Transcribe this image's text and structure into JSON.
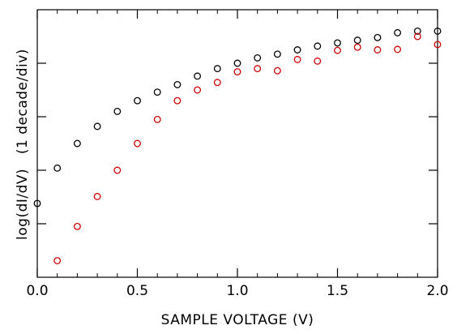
{
  "chart_data": {
    "type": "scatter",
    "title": "",
    "xlabel": "SAMPLE VOLTAGE (V)",
    "ylabel": "log(dI/dV)   (1 decade/div)",
    "xlim": [
      0.0,
      2.0
    ],
    "ylim": [
      0,
      5
    ],
    "x_ticks": [
      "0.0",
      "0.5",
      "1.0",
      "1.5",
      "2.0"
    ],
    "x_tick_values": [
      0.0,
      0.5,
      1.0,
      1.5,
      2.0
    ],
    "x_minor_step": 0.1,
    "y_tick_values": [
      1,
      2,
      3,
      4
    ],
    "y_tick_labels": false,
    "grid": false,
    "legend": "none",
    "series": [
      {
        "color": "#000000",
        "marker": "open-circle",
        "x": [
          0.0,
          0.1,
          0.2,
          0.3,
          0.4,
          0.5,
          0.6,
          0.7,
          0.8,
          0.9,
          1.0,
          1.1,
          1.2,
          1.3,
          1.4,
          1.5,
          1.6,
          1.7,
          1.8,
          1.9,
          2.0
        ],
        "y": [
          1.38,
          2.04,
          2.5,
          2.82,
          3.1,
          3.3,
          3.46,
          3.6,
          3.76,
          3.9,
          4.0,
          4.1,
          4.17,
          4.25,
          4.32,
          4.38,
          4.43,
          4.48,
          4.57,
          4.6,
          4.6
        ]
      },
      {
        "color": "#cc0000",
        "marker": "open-circle",
        "x": [
          0.1,
          0.2,
          0.3,
          0.4,
          0.5,
          0.6,
          0.7,
          0.8,
          0.9,
          1.0,
          1.1,
          1.2,
          1.3,
          1.4,
          1.5,
          1.6,
          1.7,
          1.8,
          1.9,
          2.0
        ],
        "y": [
          0.31,
          0.95,
          1.51,
          2.0,
          2.5,
          2.95,
          3.3,
          3.5,
          3.64,
          3.84,
          3.9,
          3.86,
          4.07,
          4.04,
          4.24,
          4.3,
          4.25,
          4.26,
          4.5,
          4.35
        ]
      }
    ]
  }
}
